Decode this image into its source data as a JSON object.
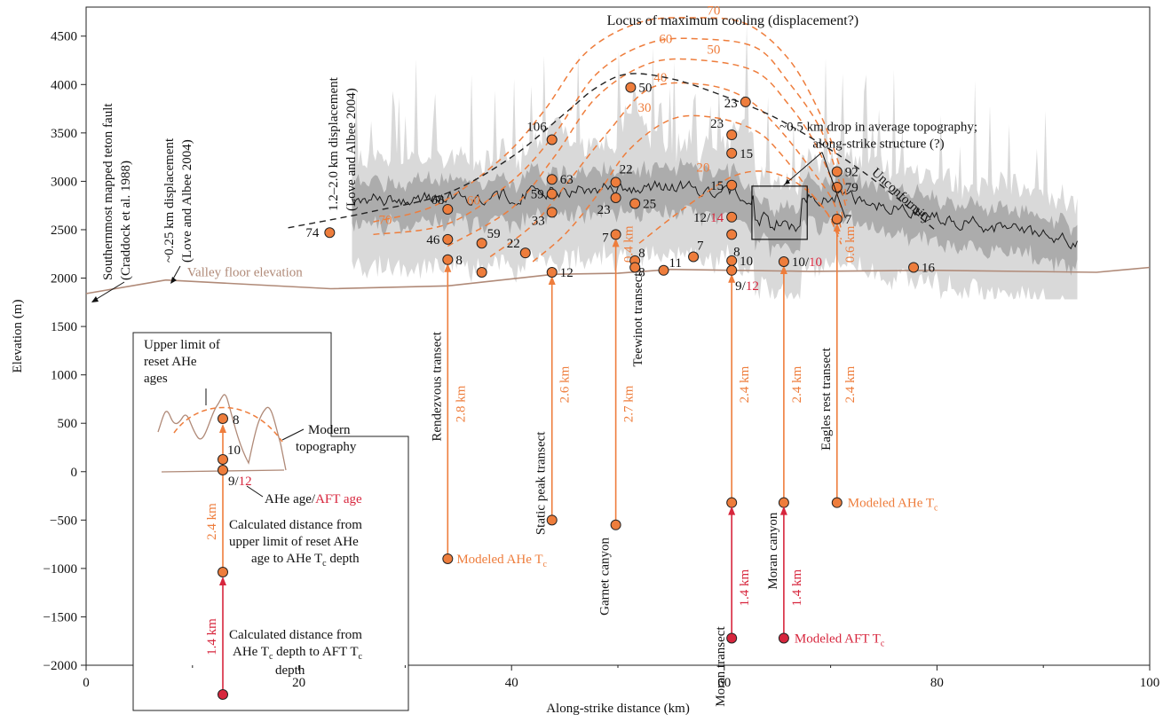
{
  "chart_data": {
    "type": "scatter",
    "xlabel": "Along-strike distance (km)",
    "ylabel": "Elevation (m)",
    "xlim": [
      0,
      100
    ],
    "ylim": [
      -2000,
      4800
    ],
    "xticks": [
      0,
      20,
      40,
      60,
      80,
      100
    ],
    "yticks": [
      -2000,
      -1500,
      -1000,
      -500,
      0,
      500,
      1000,
      1500,
      2000,
      2500,
      3000,
      3500,
      4000,
      4500
    ],
    "colors": {
      "ahe": "#ee7d3c",
      "aft": "#d7263d",
      "valley": "#b08a78",
      "topo_max": "#d9d9d9",
      "topo_mean_band": "#a6a6a6",
      "mean": "#1a1a1a",
      "contour": "#ee7d3c"
    },
    "valley_floor": {
      "label": "Valley floor elevation",
      "points": [
        [
          0,
          1840
        ],
        [
          7.5,
          1980
        ],
        [
          23,
          1890
        ],
        [
          34,
          1920
        ],
        [
          44,
          2040
        ],
        [
          50,
          2050
        ],
        [
          55,
          2090
        ],
        [
          61,
          2080
        ],
        [
          68,
          2070
        ],
        [
          80,
          2080
        ],
        [
          95,
          2060
        ],
        [
          100,
          2110
        ]
      ]
    },
    "unconformity": {
      "label": "Unconformity",
      "points": [
        [
          19,
          2520
        ],
        [
          27,
          2690
        ],
        [
          34,
          2880
        ],
        [
          40,
          3250
        ],
        [
          45,
          3700
        ],
        [
          48,
          3970
        ],
        [
          51,
          4110
        ],
        [
          55,
          4060
        ],
        [
          59,
          3920
        ],
        [
          64,
          3700
        ],
        [
          68,
          3460
        ],
        [
          72,
          3180
        ],
        [
          76,
          2850
        ],
        [
          80,
          2480
        ]
      ]
    },
    "isochrons": [
      {
        "label": "70",
        "points": [
          [
            27,
            2580
          ],
          [
            33,
            2760
          ],
          [
            39,
            3230
          ],
          [
            43,
            3720
          ],
          [
            47,
            4330
          ],
          [
            52,
            4640
          ],
          [
            57,
            4690
          ],
          [
            62,
            4630
          ],
          [
            66,
            4270
          ],
          [
            69,
            3700
          ],
          [
            71,
            3100
          ],
          [
            71.5,
            2800
          ]
        ]
      },
      {
        "label": "60",
        "points": [
          [
            27,
            2450
          ],
          [
            34,
            2560
          ],
          [
            40,
            3000
          ],
          [
            44,
            3480
          ],
          [
            48,
            4110
          ],
          [
            53,
            4430
          ],
          [
            58,
            4470
          ],
          [
            63,
            4380
          ],
          [
            66,
            4030
          ],
          [
            69,
            3550
          ],
          [
            70.8,
            3000
          ],
          [
            71.5,
            2700
          ]
        ]
      },
      {
        "label": "50",
        "points": [
          [
            34,
            2330
          ],
          [
            40,
            2720
          ],
          [
            44,
            3250
          ],
          [
            48,
            3870
          ],
          [
            53,
            4220
          ],
          [
            58,
            4250
          ],
          [
            63,
            4130
          ],
          [
            66,
            3800
          ],
          [
            68.5,
            3400
          ],
          [
            70.5,
            2900
          ],
          [
            71.2,
            2600
          ]
        ]
      },
      {
        "label": "40",
        "points": [
          [
            38,
            2220
          ],
          [
            42,
            2550
          ],
          [
            45,
            2950
          ],
          [
            49,
            3500
          ],
          [
            53,
            3960
          ],
          [
            58,
            4000
          ],
          [
            62,
            3860
          ],
          [
            65,
            3560
          ],
          [
            68,
            3150
          ],
          [
            70.2,
            2800
          ],
          [
            71,
            2500
          ]
        ]
      },
      {
        "label": "30",
        "points": [
          [
            42,
            2170
          ],
          [
            45,
            2450
          ],
          [
            48,
            2850
          ],
          [
            51,
            3320
          ],
          [
            55,
            3640
          ],
          [
            59,
            3660
          ],
          [
            63,
            3520
          ],
          [
            65.5,
            3260
          ],
          [
            68,
            2900
          ],
          [
            70,
            2620
          ],
          [
            71,
            2400
          ]
        ]
      },
      {
        "label": "20",
        "points": [
          [
            52,
            2360
          ],
          [
            55,
            2620
          ],
          [
            58,
            2860
          ],
          [
            61,
            3060
          ],
          [
            64,
            3100
          ],
          [
            67,
            2970
          ],
          [
            69.5,
            2700
          ],
          [
            71,
            2350
          ]
        ]
      }
    ],
    "samples": [
      {
        "x": 22.9,
        "y": 2470,
        "label": "74"
      },
      {
        "x": 34.0,
        "y": 2710,
        "label": "68"
      },
      {
        "x": 34.0,
        "y": 2400,
        "label": "46"
      },
      {
        "x": 34.0,
        "y": 2190,
        "label": "8"
      },
      {
        "x": 37.2,
        "y": 2060,
        "label": ""
      },
      {
        "x": 37.2,
        "y": 2360,
        "label": "59"
      },
      {
        "x": 41.3,
        "y": 2260,
        "label": "22"
      },
      {
        "x": 43.8,
        "y": 3430,
        "label": "106"
      },
      {
        "x": 43.8,
        "y": 3020,
        "label": "63"
      },
      {
        "x": 43.8,
        "y": 2870,
        "label": "59"
      },
      {
        "x": 43.8,
        "y": 2680,
        "label": "33"
      },
      {
        "x": 43.8,
        "y": 2060,
        "label": "12"
      },
      {
        "x": 49.8,
        "y": 2990,
        "label": "22"
      },
      {
        "x": 49.8,
        "y": 2830,
        "label": "23"
      },
      {
        "x": 49.8,
        "y": 2450,
        "label": "7"
      },
      {
        "x": 51.2,
        "y": 3970,
        "label": "50"
      },
      {
        "x": 51.6,
        "y": 2770,
        "label": "25"
      },
      {
        "x": 51.6,
        "y": 2180,
        "label": "8"
      },
      {
        "x": 51.6,
        "y": 2110,
        "label": "8"
      },
      {
        "x": 54.3,
        "y": 2080,
        "label": "11"
      },
      {
        "x": 57.1,
        "y": 2220,
        "label": "7"
      },
      {
        "x": 60.7,
        "y": 3480,
        "label": "23"
      },
      {
        "x": 60.7,
        "y": 3290,
        "label": "15"
      },
      {
        "x": 60.7,
        "y": 2960,
        "label": "15"
      },
      {
        "x": 60.7,
        "y": 2630,
        "label": "12/14"
      },
      {
        "x": 60.7,
        "y": 2450,
        "label": "8"
      },
      {
        "x": 60.7,
        "y": 2180,
        "label": "10"
      },
      {
        "x": 60.7,
        "y": 2080,
        "label": "9/12"
      },
      {
        "x": 62.0,
        "y": 3820,
        "label": "23"
      },
      {
        "x": 65.6,
        "y": 2170,
        "label": "10/10"
      },
      {
        "x": 70.6,
        "y": 3100,
        "label": "92"
      },
      {
        "x": 70.6,
        "y": 2940,
        "label": "79"
      },
      {
        "x": 70.6,
        "y": 2610,
        "label": "7"
      },
      {
        "x": 77.8,
        "y": 2110,
        "label": "16"
      }
    ],
    "transects": [
      {
        "name": "Rendezvous transect",
        "x": 34.0,
        "top": 2190,
        "depth": -900,
        "ahe_distance": "2.8 km",
        "aft": false,
        "model_label": "Modeled AHe Tc"
      },
      {
        "name": "Static peak transect",
        "x": 43.8,
        "top": 2060,
        "depth": -500,
        "ahe_distance": "2.6 km",
        "aft": false
      },
      {
        "name": "Garnet canyon",
        "x": 49.8,
        "top": 2450,
        "depth": -550,
        "ahe_distance": "2.7 km",
        "aft": false
      },
      {
        "name": "Teewinot transect",
        "x": 51.6,
        "top": null,
        "depth": null,
        "ahe_distance": "0.4 km",
        "aft": false
      },
      {
        "name": "Moran transect",
        "x": 60.7,
        "top": 2080,
        "depth": -320,
        "ahe_distance": "2.4 km",
        "aft": true,
        "aft_depth": -1720,
        "aft_distance": "1.4 km"
      },
      {
        "name": "Moran canyon",
        "x": 65.6,
        "top": 2170,
        "depth": -320,
        "ahe_distance": "2.4 km",
        "aft": true,
        "aft_depth": -1720,
        "aft_distance": "1.4 km",
        "aft_model_label": "Modeled AFT Tc"
      },
      {
        "name": "Eagles rest transect",
        "x": 70.6,
        "top": 2610,
        "depth": -320,
        "ahe_distance": "2.4 km",
        "aft": false,
        "model_label": "Modeled AHe Tc",
        "inner_distance": "0.6 km"
      }
    ],
    "annotations": {
      "locus": "Locus of maximum cooling (displacement?)",
      "drop_line1": "~0.5 km drop in average topography;",
      "drop_line2": "along-strike structure (?)",
      "fault_line1": "Southernmost mapped teton fault",
      "fault_line2": "(Craddock et al. 1988)",
      "disp1_line1": "~0.25 km displacement",
      "disp1_line2": "(Love and Albee 2004)",
      "disp2_line1": "1.2–2.0 km displacement",
      "disp2_line2": "(Love and Albee 2004)",
      "unconformity": "Unconformity",
      "valley_floor": "Valley floor elevation"
    },
    "inset": {
      "title_line1": "Upper limit of",
      "title_line2": "reset AHe",
      "title_line3": "ages",
      "modern_line1": "Modern",
      "modern_line2": "topography",
      "label_8": "8",
      "label_10": "10",
      "label_9": "9/",
      "label_12": "12",
      "legend_ahe": "AHe age/",
      "legend_aft": "AFT age",
      "dist_ahe": "2.4 km",
      "dist_aft": "1.4 km",
      "calc1_line1": "Calculated distance from",
      "calc1_line2": "upper limit of reset AHe",
      "calc1_line3": "age to AHe T",
      "calc1_line3b": " depth",
      "calc2_line1": "Calculated distance from",
      "calc2_line2": "AHe T",
      "calc2_line2b": " depth to AFT T",
      "calc2_line3": "depth"
    },
    "model_labels": {
      "ahe": "Modeled AHe T",
      "aft": "Modeled AFT T",
      "sub": "c"
    }
  }
}
